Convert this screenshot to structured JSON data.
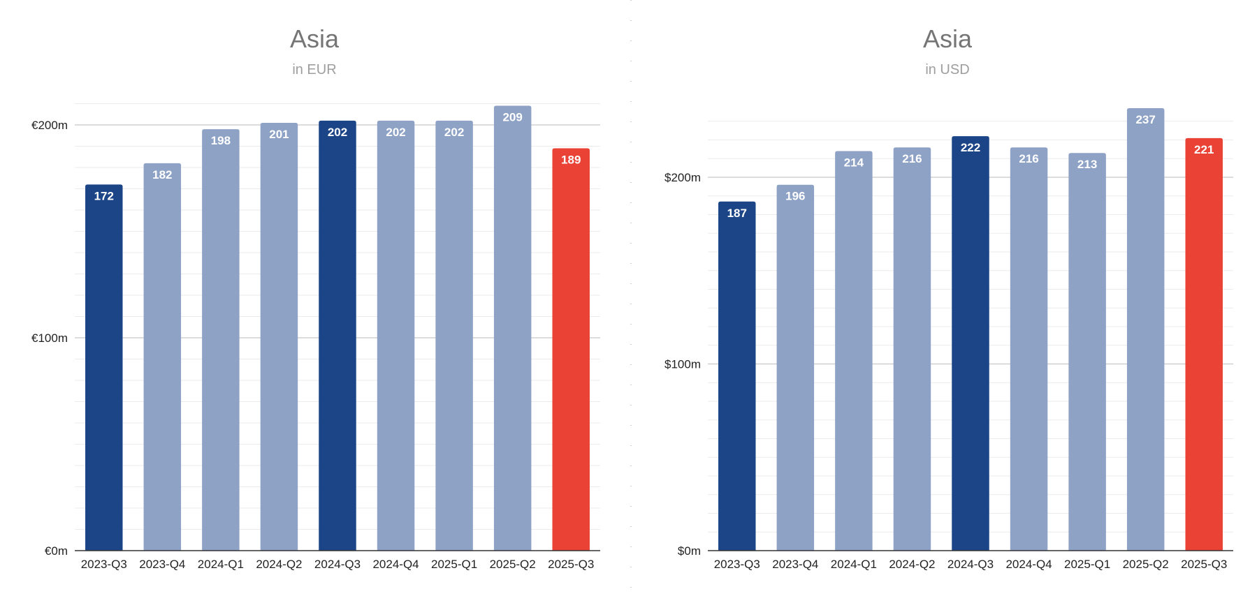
{
  "chart_data": [
    {
      "type": "bar",
      "title": "Asia",
      "subtitle": "in EUR",
      "currency_symbol": "€",
      "categories": [
        "2023-Q3",
        "2023-Q4",
        "2024-Q1",
        "2024-Q2",
        "2024-Q3",
        "2024-Q4",
        "2025-Q1",
        "2025-Q2",
        "2025-Q3"
      ],
      "values": [
        172,
        182,
        198,
        201,
        202,
        202,
        202,
        209,
        189
      ],
      "bar_styles": [
        "dark",
        "light",
        "light",
        "light",
        "dark",
        "light",
        "light",
        "light",
        "current"
      ],
      "yticks": [
        0,
        100,
        200
      ],
      "ytick_labels": [
        "€0m",
        "€100m",
        "€200m"
      ],
      "minor_gridline_step": 10,
      "ylim": [
        0,
        210
      ],
      "xlabel": "",
      "ylabel": "",
      "grid": true
    },
    {
      "type": "bar",
      "title": "Asia",
      "subtitle": "in USD",
      "currency_symbol": "$",
      "categories": [
        "2023-Q3",
        "2023-Q4",
        "2024-Q1",
        "2024-Q2",
        "2024-Q3",
        "2024-Q4",
        "2025-Q1",
        "2025-Q2",
        "2025-Q3"
      ],
      "values": [
        187,
        196,
        214,
        216,
        222,
        216,
        213,
        237,
        221
      ],
      "bar_styles": [
        "dark",
        "light",
        "light",
        "light",
        "dark",
        "light",
        "light",
        "light",
        "current"
      ],
      "yticks": [
        0,
        100,
        200
      ],
      "ytick_labels": [
        "$0m",
        "$100m",
        "$200m"
      ],
      "minor_gridline_step": 10,
      "ylim": [
        0,
        240
      ],
      "xlabel": "",
      "ylabel": "",
      "grid": true
    }
  ],
  "colors": {
    "dark": "#1c4587",
    "light": "#8ea2c6",
    "current": "#ea4335",
    "major_grid": "#c8c8c8",
    "minor_grid": "#ebebeb",
    "axis": "#333333",
    "divider": "#bdbdbd"
  }
}
